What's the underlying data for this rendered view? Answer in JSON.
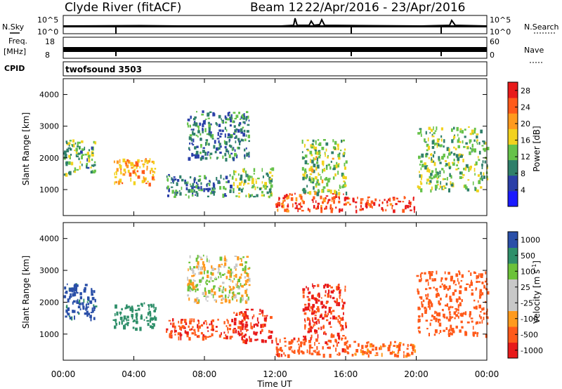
{
  "header": {
    "station": "Clyde River (fitACF)",
    "beam": "Beam 12",
    "date_range": "22/Apr/2016 - 23/Apr/2016"
  },
  "strips": {
    "nsky_label": "N.Sky",
    "nsky_ticks": [
      "10^5",
      "10^0"
    ],
    "nsearch_label": "N.Search",
    "nsearch_ticks": [
      "10^5",
      "10^0"
    ],
    "freq_label": "Freq.",
    "freq_unit": "[MHz]",
    "freq_ticks": [
      "18",
      "8"
    ],
    "nave_label": "Nave",
    "nave_ticks": [
      "60",
      "0"
    ],
    "cpid_label": "CPID",
    "cpid_value": "twofsound 3503"
  },
  "colors": {
    "power_scale": [
      "#1a1aff",
      "#2a3fa8",
      "#2f7f6a",
      "#66c24a",
      "#f2d21e",
      "#ff9a1e",
      "#ff5a1a",
      "#e81a1a"
    ],
    "velocity_scale": [
      "#e81a1a",
      "#ff5a1a",
      "#ff9a1e",
      "#c8c8c8",
      "#c8c8c8",
      "#6cc23a",
      "#2f8f6a",
      "#2a4fa8"
    ]
  },
  "chart_data": [
    {
      "type": "heatmap",
      "name": "power",
      "xlabel": "Time UT",
      "ylabel": "Slant Range [km]",
      "xlim": [
        0,
        24
      ],
      "ylim": [
        180,
        4500
      ],
      "x_ticks": [
        "00:00",
        "04:00",
        "08:00",
        "12:00",
        "16:00",
        "20:00",
        "00:00"
      ],
      "y_ticks": [
        1000,
        2000,
        3000,
        4000
      ],
      "colorbar": {
        "label": "Power [dB]",
        "ticks": [
          4,
          8,
          12,
          16,
          20,
          24,
          28
        ],
        "range": [
          0,
          30
        ]
      },
      "regions": [
        {
          "t0": 0.0,
          "t1": 1.8,
          "r0": 1500,
          "r1": 2600,
          "level": 12
        },
        {
          "t0": 2.8,
          "t1": 5.2,
          "r0": 1200,
          "r1": 2000,
          "level": 20
        },
        {
          "t0": 5.8,
          "t1": 9.5,
          "r0": 800,
          "r1": 1500,
          "level": 10
        },
        {
          "t0": 7.0,
          "t1": 10.5,
          "r0": 2000,
          "r1": 3500,
          "level": 9
        },
        {
          "t0": 9.5,
          "t1": 11.8,
          "r0": 800,
          "r1": 1700,
          "level": 14
        },
        {
          "t0": 12.0,
          "t1": 16.2,
          "r0": 350,
          "r1": 900,
          "level": 26
        },
        {
          "t0": 13.5,
          "t1": 16.0,
          "r0": 900,
          "r1": 2600,
          "level": 14
        },
        {
          "t0": 16.3,
          "t1": 19.9,
          "r0": 350,
          "r1": 800,
          "level": 27
        },
        {
          "t0": 20.0,
          "t1": 24.0,
          "r0": 1000,
          "r1": 3000,
          "level": 13
        }
      ]
    },
    {
      "type": "heatmap",
      "name": "velocity",
      "xlabel": "Time UT",
      "ylabel": "Slant Range [km]",
      "xlim": [
        0,
        24
      ],
      "ylim": [
        180,
        4500
      ],
      "x_ticks": [
        "00:00",
        "04:00",
        "08:00",
        "12:00",
        "16:00",
        "20:00",
        "00:00"
      ],
      "y_ticks": [
        1000,
        2000,
        3000,
        4000
      ],
      "colorbar": {
        "label": "Velocity [m s^-1]",
        "ticks": [
          "1000",
          "500",
          "100",
          "25",
          "-25",
          "-100",
          "-500",
          "-1000"
        ]
      },
      "regions": [
        {
          "t0": 0.0,
          "t1": 1.8,
          "r0": 1500,
          "r1": 2600,
          "v": 800
        },
        {
          "t0": 2.8,
          "t1": 5.2,
          "r0": 1200,
          "r1": 2000,
          "v": 300
        },
        {
          "t0": 5.8,
          "t1": 9.5,
          "r0": 900,
          "r1": 1500,
          "v": -400
        },
        {
          "t0": 7.0,
          "t1": 10.5,
          "r0": 2000,
          "r1": 3500,
          "v": 0
        },
        {
          "t0": 9.5,
          "t1": 11.8,
          "r0": 800,
          "r1": 1800,
          "v": -600
        },
        {
          "t0": 12.0,
          "t1": 16.2,
          "r0": 350,
          "r1": 900,
          "v": -350
        },
        {
          "t0": 13.5,
          "t1": 16.0,
          "r0": 900,
          "r1": 2600,
          "v": -500
        },
        {
          "t0": 16.3,
          "t1": 19.9,
          "r0": 350,
          "r1": 800,
          "v": -150
        },
        {
          "t0": 20.0,
          "t1": 24.0,
          "r0": 1000,
          "r1": 3000,
          "v": -300
        }
      ]
    }
  ]
}
